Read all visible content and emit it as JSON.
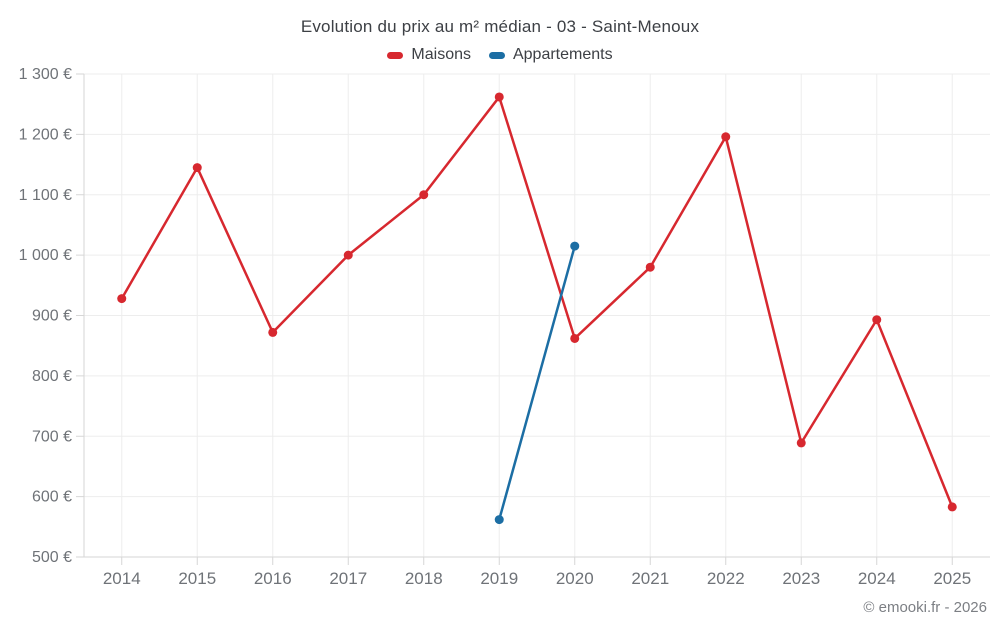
{
  "chart_data": {
    "type": "line",
    "title": "Evolution du prix au m² médian - 03 - Saint-Menoux",
    "categories": [
      "2014",
      "2015",
      "2016",
      "2017",
      "2018",
      "2019",
      "2020",
      "2021",
      "2022",
      "2023",
      "2024",
      "2025"
    ],
    "series": [
      {
        "name": "Maisons",
        "color": "#d7282f",
        "values": [
          928,
          1145,
          872,
          1000,
          1100,
          1262,
          862,
          980,
          1196,
          689,
          893,
          583
        ]
      },
      {
        "name": "Appartements",
        "color": "#1c6ea4",
        "values": [
          null,
          null,
          null,
          null,
          null,
          562,
          1015,
          null,
          null,
          null,
          null,
          null
        ]
      }
    ],
    "xlabel": "",
    "ylabel": "",
    "ylim": [
      500,
      1300
    ],
    "y_ticks": [
      500,
      600,
      700,
      800,
      900,
      1000,
      1100,
      1200,
      1300
    ],
    "y_tick_labels": [
      "500 €",
      "600 €",
      "700 €",
      "800 €",
      "900 €",
      "1 000 €",
      "1 100 €",
      "1 200 €",
      "1 300 €"
    ],
    "grid": true,
    "legend_position": "top",
    "currency_suffix": " €"
  },
  "footer": {
    "copyright": "© emooki.fr - 2026"
  },
  "colors": {
    "grid": "#ededed",
    "axis": "#d6d6d6",
    "tick_text": "#6f7378",
    "title_text": "#3d4045",
    "background": "#ffffff",
    "maisons": "#d7282f",
    "appartements": "#1c6ea4"
  }
}
